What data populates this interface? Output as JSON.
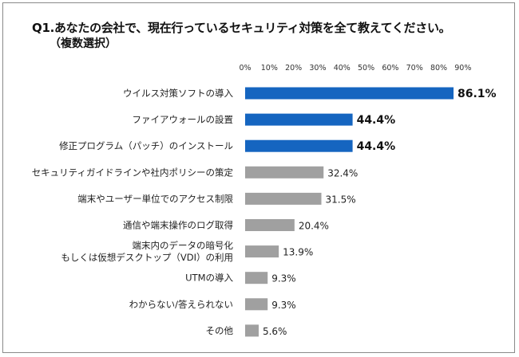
{
  "header": {
    "title": "Q1.あなたの会社で、現在行っているセキュリティ対策を全て教えてください。",
    "subtitle": "（複数選択）"
  },
  "chart_data": {
    "type": "bar",
    "orientation": "horizontal",
    "xlim": [
      0,
      90
    ],
    "tick_labels": [
      "0%",
      "10%",
      "20%",
      "30%",
      "40%",
      "50%",
      "60%",
      "70%",
      "80%",
      "90%"
    ],
    "categories": [
      [
        "ウイルス対策ソフトの導入"
      ],
      [
        "ファイアウォールの設置"
      ],
      [
        "修正プログラム（パッチ）のインストール"
      ],
      [
        "セキュリティガイドラインや社内ポリシーの策定"
      ],
      [
        "端末やユーザー単位でのアクセス制限"
      ],
      [
        "通信や端末操作のログ取得"
      ],
      [
        "端末内のデータの暗号化",
        "もしくは仮想デスクトップ（VDI）の利用"
      ],
      [
        "UTMの導入"
      ],
      [
        "わからない/答えられない"
      ],
      [
        "その他"
      ]
    ],
    "values": [
      86.1,
      44.4,
      44.4,
      32.4,
      31.5,
      20.4,
      13.9,
      9.3,
      9.3,
      5.6
    ],
    "value_labels": [
      "86.1%",
      "44.4%",
      "44.4%",
      "32.4%",
      "31.5%",
      "20.4%",
      "13.9%",
      "9.3%",
      "9.3%",
      "5.6%"
    ],
    "highlight_count": 3,
    "colors": {
      "highlight": "#1565c0",
      "normal": "#a0a0a0"
    },
    "grid": false,
    "legend": "none"
  }
}
